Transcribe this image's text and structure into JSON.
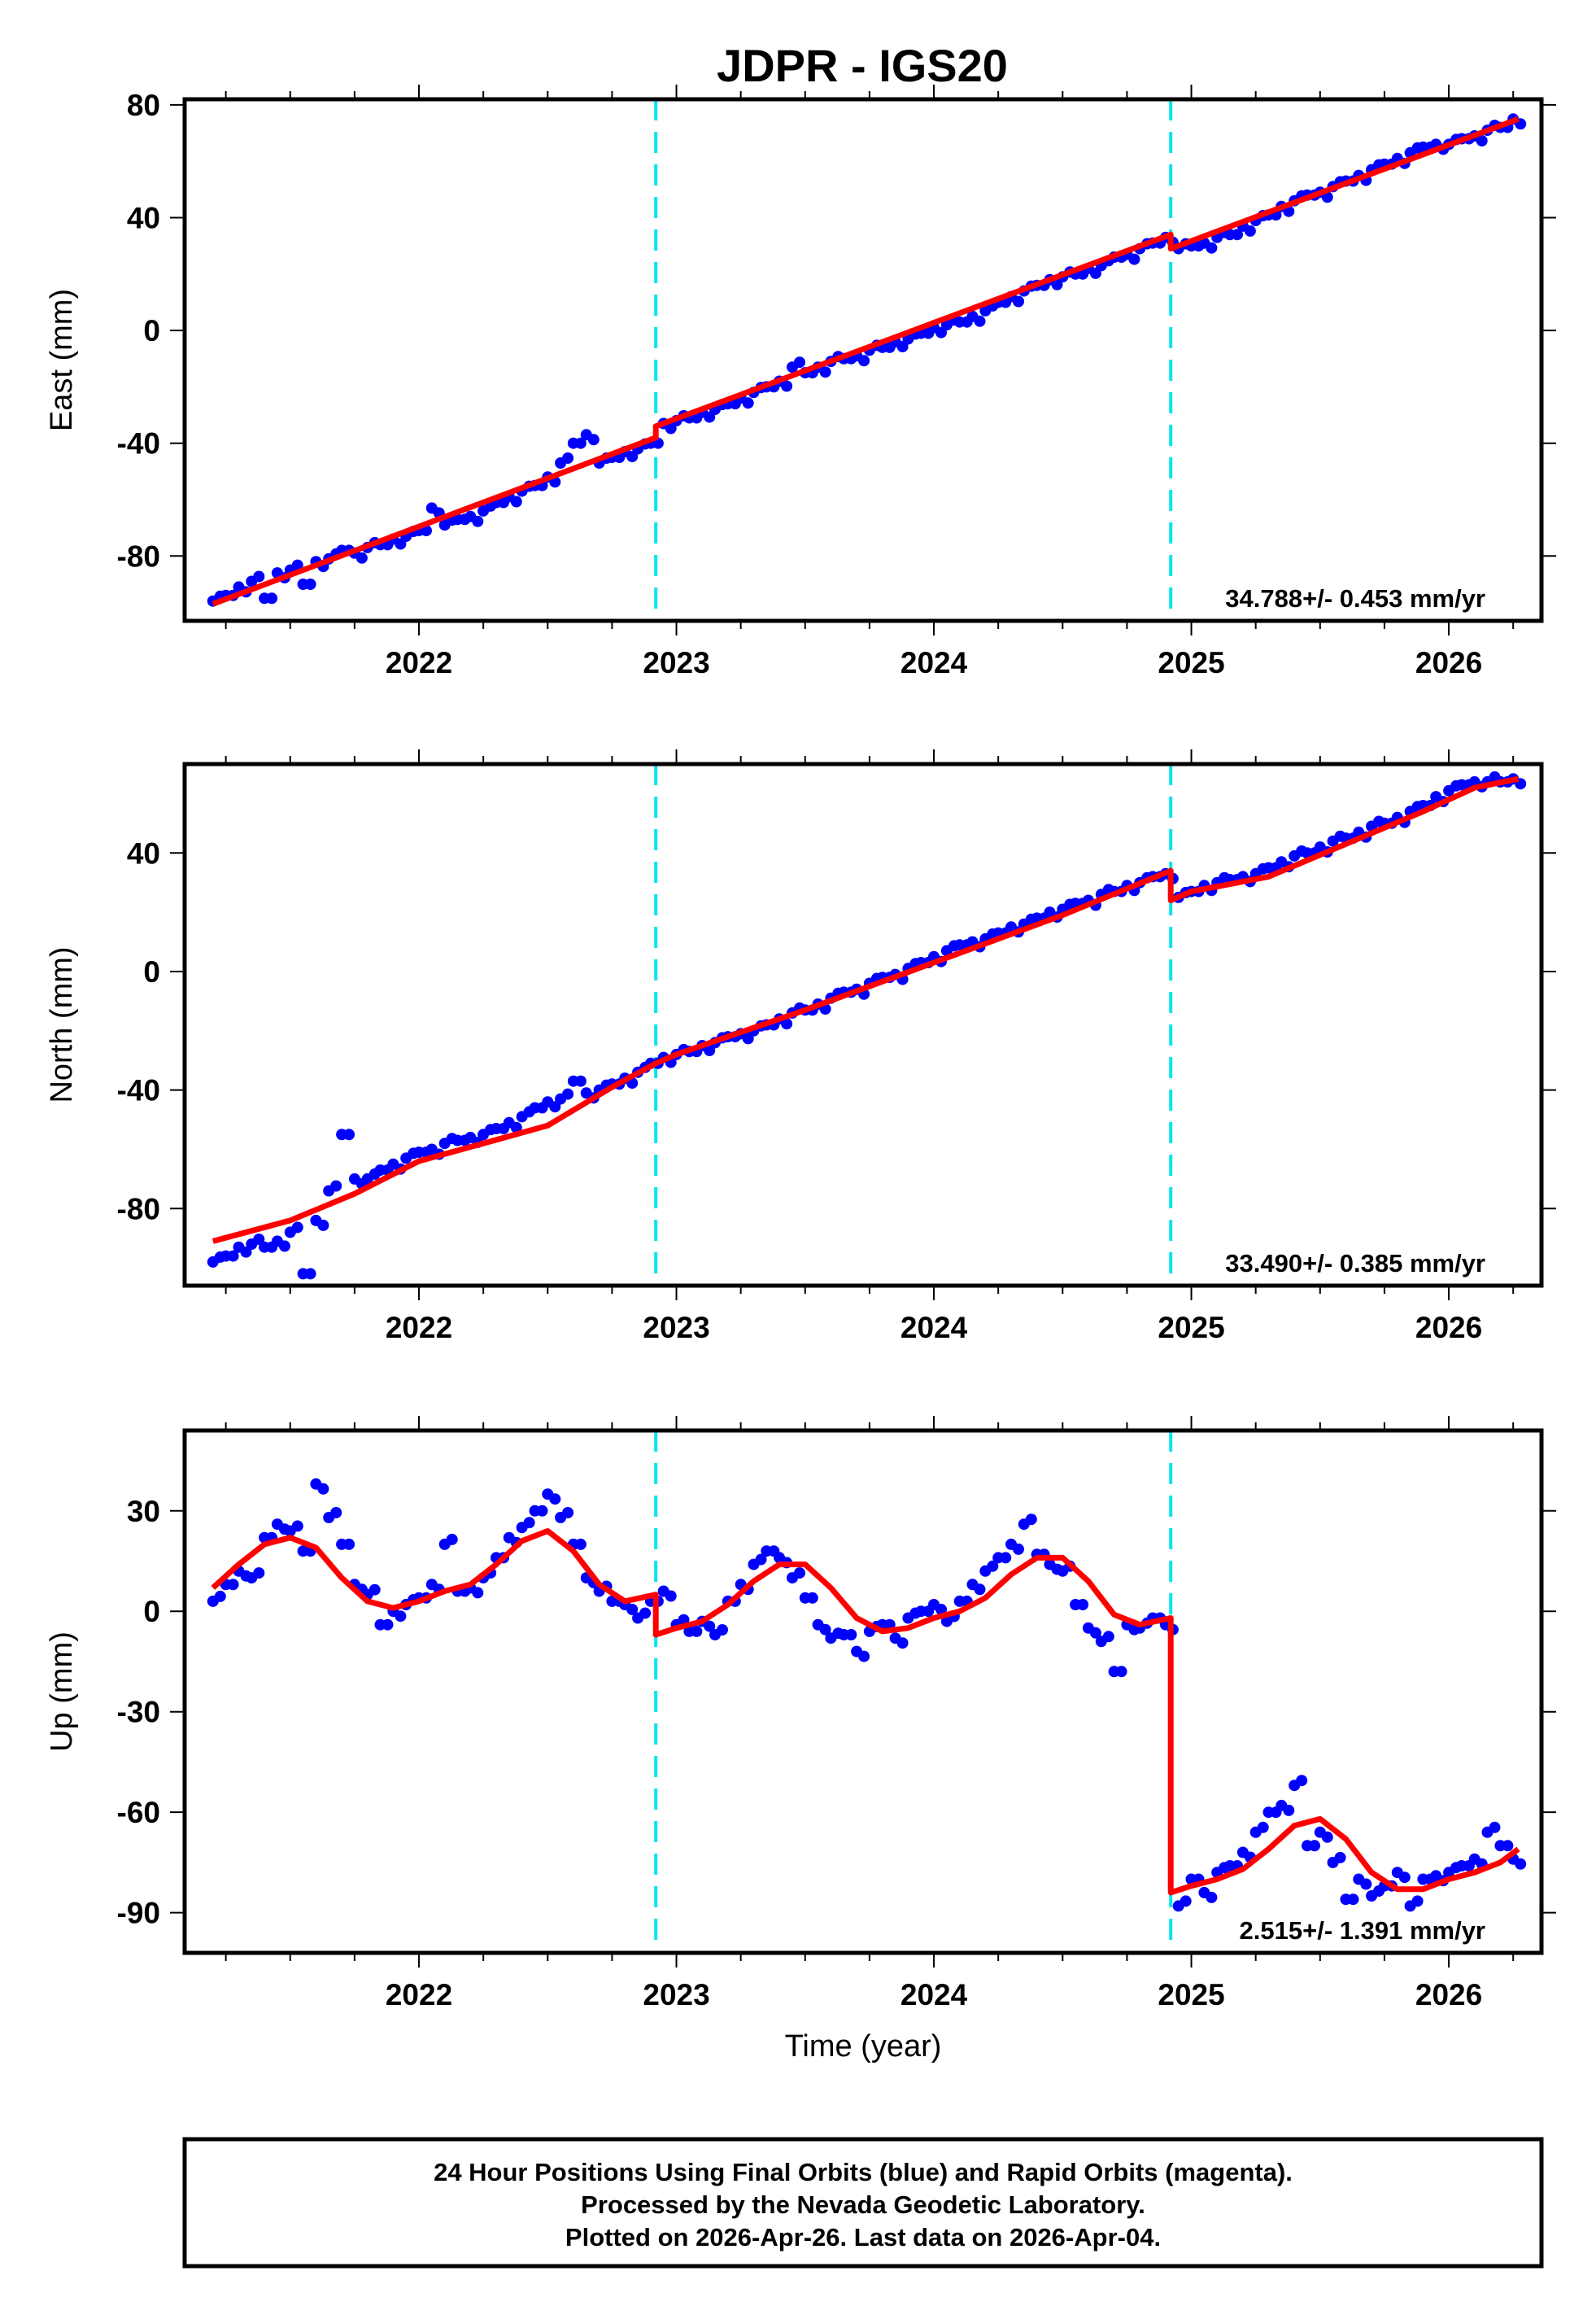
{
  "title": "JDPR - IGS20",
  "xlabel": "Time (year)",
  "footer": {
    "line1": "24 Hour Positions Using Final Orbits (blue) and Rapid Orbits (magenta).",
    "line2": "Processed by the Nevada Geodetic Laboratory.",
    "line3": "Plotted on 2026-Apr-26. Last data on 2026-Apr-04."
  },
  "colors": {
    "data": "#0000ff",
    "fit": "#ff0000",
    "event": "#00e5ee",
    "frame": "#000000"
  },
  "chart_data": [
    {
      "type": "scatter",
      "ylabel": "East (mm)",
      "rate": "34.788+/- 0.453 mm/yr",
      "xlim": [
        2021.09,
        2026.36
      ],
      "ylim": [
        -103,
        82
      ],
      "xticks": [
        2022,
        2023,
        2024,
        2025,
        2026
      ],
      "yticks": [
        80,
        40,
        0,
        -40,
        -80
      ],
      "events": [
        2022.92,
        2024.92
      ],
      "data": {
        "x_start": 2021.2,
        "x_step": 0.05,
        "y": [
          -96,
          -94,
          -91,
          -89,
          -95,
          -86,
          -85,
          -90,
          -82,
          -81,
          -78,
          -79,
          -77,
          -76,
          -74,
          -73,
          -71,
          -63,
          -69,
          -67,
          -66,
          -64,
          -61,
          -59,
          -57,
          -55,
          -52,
          -47,
          -40,
          -37,
          -47,
          -45,
          -43,
          -42,
          -40,
          -33,
          -32,
          -31,
          -29,
          -28,
          -26,
          -24,
          -22,
          -20,
          -18,
          -13,
          -15,
          -13,
          -11,
          -10,
          -9,
          -7,
          -6,
          -4,
          -3,
          -1,
          1,
          2,
          3,
          5,
          7,
          10,
          12,
          14,
          16,
          18,
          19,
          20,
          22,
          23,
          26,
          27,
          29,
          31,
          33,
          29,
          30,
          31,
          33,
          34,
          37,
          39,
          41,
          44,
          46,
          48,
          49,
          51,
          53,
          55,
          57,
          59,
          61,
          63,
          65,
          66,
          66,
          68,
          69,
          71,
          72,
          75
        ]
      },
      "fit": [
        [
          [
            2021.2,
            -97
          ],
          [
            2022.92,
            -38
          ]
        ],
        [
          [
            2022.92,
            -34
          ],
          [
            2024.92,
            34
          ]
        ],
        [
          [
            2024.92,
            29
          ],
          [
            2026.27,
            75
          ]
        ]
      ]
    },
    {
      "type": "scatter",
      "ylabel": "North (mm)",
      "rate": "33.490+/- 0.385 mm/yr",
      "xlim": [
        2021.09,
        2026.36
      ],
      "ylim": [
        -106,
        70
      ],
      "xticks": [
        2022,
        2023,
        2024,
        2025,
        2026
      ],
      "yticks": [
        40,
        0,
        -40,
        -80
      ],
      "events": [
        2022.92,
        2024.92
      ],
      "data": {
        "x_start": 2021.2,
        "x_step": 0.05,
        "y": [
          -98,
          -96,
          -93,
          -92,
          -93,
          -91,
          -88,
          -102,
          -84,
          -74,
          -55,
          -70,
          -70,
          -67,
          -65,
          -63,
          -61,
          -60,
          -58,
          -57,
          -56,
          -55,
          -53,
          -51,
          -49,
          -46,
          -44,
          -43,
          -37,
          -41,
          -40,
          -38,
          -36,
          -34,
          -31,
          -29,
          -28,
          -27,
          -25,
          -24,
          -22,
          -21,
          -20,
          -18,
          -16,
          -14,
          -13,
          -11,
          -9,
          -7,
          -6,
          -4,
          -2,
          -1,
          1,
          3,
          5,
          7,
          9,
          10,
          11,
          13,
          15,
          16,
          18,
          20,
          21,
          23,
          24,
          26,
          27,
          29,
          30,
          32,
          33,
          25,
          27,
          29,
          30,
          31,
          32,
          33,
          35,
          37,
          39,
          40,
          42,
          44,
          45,
          47,
          49,
          50,
          52,
          54,
          56,
          59,
          61,
          63,
          64,
          64,
          64,
          65
        ]
      },
      "fit": [
        [
          [
            2021.2,
            -91
          ],
          [
            2021.5,
            -84
          ],
          [
            2021.75,
            -75
          ],
          [
            2022.0,
            -64
          ],
          [
            2022.25,
            -58
          ],
          [
            2022.5,
            -52
          ],
          [
            2022.75,
            -39
          ],
          [
            2022.92,
            -31
          ]
        ],
        [
          [
            2022.92,
            -31
          ],
          [
            2023.0,
            -28
          ],
          [
            2023.5,
            -13
          ],
          [
            2024.0,
            3
          ],
          [
            2024.5,
            19
          ],
          [
            2024.92,
            34
          ]
        ],
        [
          [
            2024.92,
            24
          ],
          [
            2025.0,
            27
          ],
          [
            2025.3,
            32
          ],
          [
            2025.6,
            43
          ],
          [
            2025.9,
            54
          ],
          [
            2026.1,
            62
          ],
          [
            2026.27,
            65
          ]
        ]
      ]
    },
    {
      "type": "scatter",
      "ylabel": "Up (mm)",
      "rate": "2.515+/- 1.391 mm/yr",
      "xlim": [
        2021.09,
        2026.36
      ],
      "ylim": [
        -102,
        54
      ],
      "xticks": [
        2022,
        2023,
        2024,
        2025,
        2026
      ],
      "yticks": [
        30,
        0,
        -30,
        -60,
        -90
      ],
      "events": [
        2022.92,
        2024.92
      ],
      "data": {
        "x_start": 2021.2,
        "x_step": 0.05,
        "y": [
          3,
          8,
          12,
          10,
          22,
          26,
          24,
          18,
          38,
          28,
          20,
          8,
          5,
          -4,
          0,
          2,
          4,
          8,
          20,
          6,
          7,
          10,
          16,
          22,
          25,
          30,
          35,
          28,
          20,
          10,
          6,
          3,
          2,
          -2,
          3,
          6,
          -4,
          -6,
          -3,
          -7,
          3,
          8,
          14,
          18,
          16,
          10,
          4,
          -4,
          -8,
          -7,
          -12,
          -6,
          -4,
          -8,
          -2,
          0,
          2,
          -3,
          3,
          8,
          12,
          16,
          20,
          26,
          17,
          14,
          12,
          2,
          -5,
          -9,
          -18,
          -4,
          -5,
          -2,
          -4,
          -88,
          -80,
          -84,
          -78,
          -76,
          -72,
          -66,
          -60,
          -58,
          -52,
          -70,
          -66,
          -75,
          -86,
          -80,
          -85,
          -82,
          -78,
          -88,
          -80,
          -79,
          -78,
          -76,
          -74,
          -66,
          -70,
          -74
        ]
      },
      "fit": [
        [
          [
            2021.2,
            7
          ],
          [
            2021.3,
            14
          ],
          [
            2021.4,
            20
          ],
          [
            2021.5,
            22
          ],
          [
            2021.6,
            19
          ],
          [
            2021.7,
            10
          ],
          [
            2021.8,
            3
          ],
          [
            2021.9,
            1
          ],
          [
            2022.0,
            3
          ],
          [
            2022.1,
            6
          ],
          [
            2022.2,
            8
          ],
          [
            2022.3,
            14
          ],
          [
            2022.4,
            21
          ],
          [
            2022.5,
            24
          ],
          [
            2022.6,
            18
          ],
          [
            2022.7,
            8
          ],
          [
            2022.8,
            3
          ],
          [
            2022.92,
            5
          ]
        ],
        [
          [
            2022.92,
            -7
          ],
          [
            2023.0,
            -5
          ],
          [
            2023.1,
            -3
          ],
          [
            2023.2,
            2
          ],
          [
            2023.3,
            9
          ],
          [
            2023.4,
            14
          ],
          [
            2023.5,
            14
          ],
          [
            2023.6,
            7
          ],
          [
            2023.7,
            -2
          ],
          [
            2023.8,
            -6
          ],
          [
            2023.9,
            -5
          ],
          [
            2024.0,
            -2
          ],
          [
            2024.1,
            0
          ],
          [
            2024.2,
            4
          ],
          [
            2024.3,
            11
          ],
          [
            2024.4,
            16
          ],
          [
            2024.5,
            16
          ],
          [
            2024.6,
            9
          ],
          [
            2024.7,
            -1
          ],
          [
            2024.8,
            -4
          ],
          [
            2024.92,
            -2
          ]
        ],
        [
          [
            2024.92,
            -84
          ],
          [
            2025.0,
            -82
          ],
          [
            2025.1,
            -80
          ],
          [
            2025.2,
            -77
          ],
          [
            2025.3,
            -71
          ],
          [
            2025.4,
            -64
          ],
          [
            2025.5,
            -62
          ],
          [
            2025.6,
            -68
          ],
          [
            2025.7,
            -78
          ],
          [
            2025.8,
            -83
          ],
          [
            2025.9,
            -83
          ],
          [
            2026.0,
            -80
          ],
          [
            2026.1,
            -78
          ],
          [
            2026.2,
            -75
          ],
          [
            2026.27,
            -71
          ]
        ]
      ]
    }
  ]
}
